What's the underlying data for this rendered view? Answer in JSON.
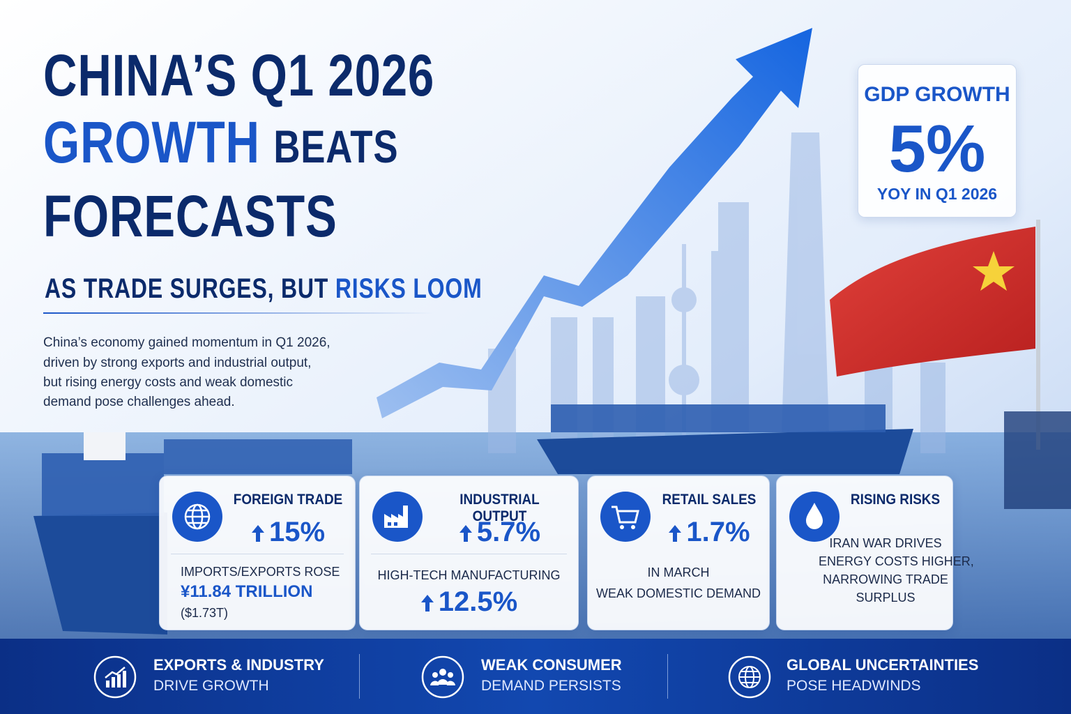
{
  "header": {
    "title_line1": "CHINA’S Q1 2026",
    "title_highlight": "GROWTH",
    "title_line2_rest": "BEATS",
    "title_line3": "FORECASTS",
    "subtitle": "AS TRADE SURGES, BUT",
    "subtitle_highlight": "RISKS LOOM",
    "intro_lines": [
      "China’s economy gained momentum in Q1 2026,",
      "driven by strong exports and industrial output,",
      "but rising energy costs and weak domestic",
      "demand pose challenges ahead."
    ]
  },
  "gdp_box": {
    "label": "GDP GROWTH",
    "value": "5%",
    "note": "YOY IN Q1 2026"
  },
  "cards": [
    {
      "title": "FOREIGN TRADE",
      "value": "15%",
      "lines": [
        "IMPORTS/EXPORTS ROSE",
        "¥11.84  TRILLION",
        "($1.73T)"
      ]
    },
    {
      "title": "INDUSTRIAL OUTPUT",
      "value": "5.7%",
      "sub_label": "HIGH-TECH MANUFACTURING",
      "sub_value": "12.5%"
    },
    {
      "title": "RETAIL SALES",
      "value": "1.7%",
      "lines": [
        "IN MARCH",
        "WEAK DOMESTIC DEMAND"
      ]
    },
    {
      "title": "RISING RISKS",
      "lines": [
        "IRAN WAR DRIVES",
        "ENERGY COSTS HIGHER,",
        "NARROWING TRADE",
        "SURPLUS"
      ]
    }
  ],
  "footer": [
    {
      "title": "EXPORTS & INDUSTRY",
      "text": "DRIVE GROWTH"
    },
    {
      "title": "WEAK CONSUMER",
      "text": "DEMAND PERSISTS"
    },
    {
      "title": "GLOBAL UNCERTAINTIES",
      "text": "POSE HEADWINDS"
    }
  ]
}
